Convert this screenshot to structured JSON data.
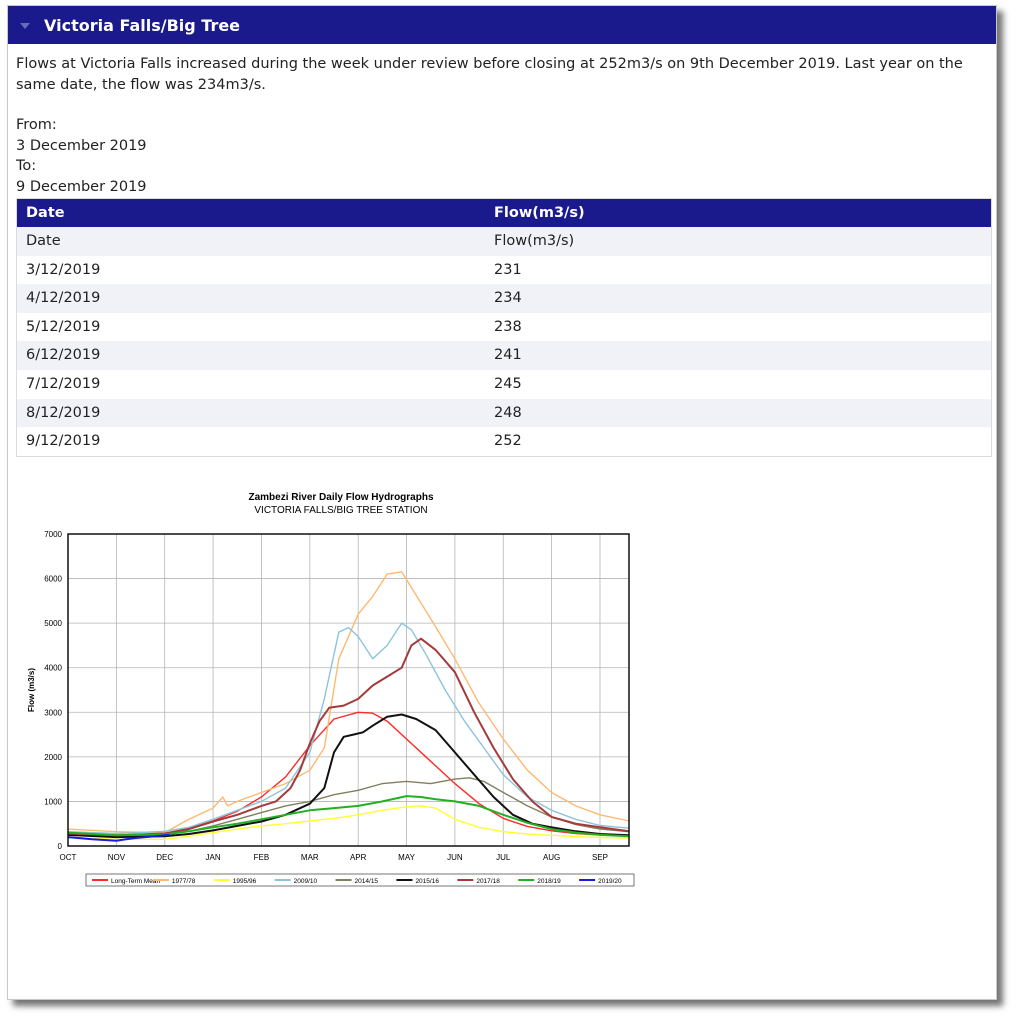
{
  "panel": {
    "title": "Victoria Falls/Big Tree",
    "intro": "Flows at Victoria Falls increased during the week under review before closing at 252m3/s on 9th December 2019. Last year on the same date, the flow was 234m3/s.",
    "from_label": "From:",
    "from_date": "3 December 2019",
    "to_label": "To:",
    "to_date": "9 December 2019"
  },
  "table": {
    "headers": [
      "Date",
      "Flow(m3/s)"
    ],
    "rows": [
      [
        "Date",
        "Flow(m3/s)"
      ],
      [
        "3/12/2019",
        "231"
      ],
      [
        "4/12/2019",
        "234"
      ],
      [
        "5/12/2019",
        "238"
      ],
      [
        "6/12/2019",
        "241"
      ],
      [
        "7/12/2019",
        "245"
      ],
      [
        "8/12/2019",
        "248"
      ],
      [
        "9/12/2019",
        "252"
      ]
    ]
  },
  "chart_data": {
    "type": "line",
    "title": "Zambezi River Daily Flow Hydrographs",
    "subtitle": "VICTORIA FALLS/BIG TREE STATION",
    "xlabel": "",
    "ylabel": "Flow (m3/s)",
    "ylim": [
      0,
      7000
    ],
    "yticks": [
      0,
      1000,
      2000,
      3000,
      4000,
      5000,
      6000,
      7000
    ],
    "xlim": [
      0,
      11.6
    ],
    "categories": [
      "OCT",
      "NOV",
      "DEC",
      "JAN",
      "FEB",
      "MAR",
      "APR",
      "MAY",
      "JUN",
      "JUL",
      "AUG",
      "SEP"
    ],
    "grid": true,
    "legend_position": "bottom",
    "series": [
      {
        "name": "Long-Term Mean",
        "color": "#ff2a2a",
        "x": [
          0,
          1,
          2,
          2.5,
          3,
          3.5,
          4,
          4.5,
          5,
          5.5,
          6,
          6.3,
          6.6,
          7,
          7.5,
          8,
          8.5,
          9,
          9.5,
          10,
          10.5,
          11,
          11.6
        ],
        "y": [
          300,
          240,
          280,
          400,
          560,
          780,
          1100,
          1550,
          2250,
          2850,
          3000,
          2980,
          2800,
          2400,
          1900,
          1400,
          950,
          620,
          440,
          340,
          280,
          250,
          230
        ]
      },
      {
        "name": "1977/78",
        "color": "#ffb870",
        "x": [
          0,
          1,
          2,
          2.5,
          3,
          3.2,
          3.3,
          3.5,
          4,
          4.5,
          5,
          5.3,
          5.6,
          6,
          6.3,
          6.6,
          6.9,
          7.1,
          7.5,
          8,
          8.5,
          9,
          9.5,
          10,
          10.5,
          11,
          11.6
        ],
        "y": [
          380,
          320,
          300,
          600,
          850,
          1100,
          900,
          1000,
          1200,
          1400,
          1700,
          2200,
          4200,
          5200,
          5600,
          6100,
          6150,
          5800,
          5100,
          4200,
          3200,
          2400,
          1700,
          1200,
          900,
          700,
          560
        ]
      },
      {
        "name": "1995/96",
        "color": "#ffff33",
        "x": [
          0,
          1,
          2,
          2.5,
          3,
          3.5,
          4,
          4.5,
          5,
          5.5,
          6,
          6.5,
          7,
          7.3,
          7.6,
          8,
          8.5,
          9,
          9.5,
          10,
          10.5,
          11,
          11.6
        ],
        "y": [
          200,
          150,
          150,
          220,
          300,
          380,
          450,
          500,
          560,
          620,
          700,
          800,
          880,
          900,
          850,
          600,
          420,
          320,
          270,
          240,
          210,
          190,
          180
        ]
      },
      {
        "name": "2009/10",
        "color": "#8cc4dc",
        "x": [
          0,
          1,
          2,
          2.5,
          3,
          3.5,
          4,
          4.5,
          5,
          5.3,
          5.6,
          5.8,
          6,
          6.3,
          6.6,
          6.9,
          7.1,
          7.4,
          7.8,
          8.2,
          8.6,
          9,
          9.5,
          10,
          10.5,
          11,
          11.6
        ],
        "y": [
          320,
          280,
          330,
          420,
          600,
          800,
          1000,
          1300,
          2100,
          3300,
          4800,
          4900,
          4700,
          4200,
          4500,
          5000,
          4850,
          4300,
          3500,
          2800,
          2200,
          1600,
          1100,
          800,
          600,
          460,
          400
        ]
      },
      {
        "name": "2014/15",
        "color": "#808060",
        "x": [
          0,
          1,
          2,
          2.5,
          3,
          3.5,
          4,
          4.5,
          5,
          5.5,
          6,
          6.5,
          7,
          7.5,
          8,
          8.3,
          8.6,
          9,
          9.5,
          10,
          10.5,
          11,
          11.6
        ],
        "y": [
          250,
          220,
          250,
          330,
          450,
          600,
          750,
          900,
          1000,
          1150,
          1250,
          1400,
          1450,
          1400,
          1500,
          1530,
          1450,
          1200,
          900,
          650,
          480,
          380,
          320
        ]
      },
      {
        "name": "2015/16",
        "color": "#111111",
        "x": [
          0,
          1,
          2,
          2.5,
          3,
          3.5,
          4,
          4.5,
          5,
          5.3,
          5.5,
          5.7,
          5.9,
          6.1,
          6.3,
          6.6,
          6.9,
          7.2,
          7.6,
          8,
          8.4,
          8.8,
          9.2,
          9.6,
          10,
          10.5,
          11,
          11.6
        ],
        "y": [
          250,
          200,
          220,
          270,
          350,
          450,
          550,
          700,
          950,
          1300,
          2100,
          2450,
          2500,
          2550,
          2700,
          2900,
          2950,
          2850,
          2600,
          2100,
          1600,
          1100,
          700,
          500,
          420,
          330,
          270,
          240
        ]
      },
      {
        "name": "2017/18",
        "color": "#a53a3a",
        "x": [
          0,
          1,
          2,
          2.5,
          3,
          3.5,
          4,
          4.3,
          4.6,
          4.8,
          5,
          5.2,
          5.4,
          5.7,
          6,
          6.3,
          6.6,
          6.9,
          7.1,
          7.3,
          7.6,
          8,
          8.4,
          8.8,
          9.2,
          9.6,
          10,
          10.5,
          11,
          11.6
        ],
        "y": [
          280,
          240,
          280,
          380,
          550,
          700,
          900,
          1000,
          1300,
          1700,
          2300,
          2800,
          3100,
          3150,
          3300,
          3600,
          3800,
          4000,
          4500,
          4650,
          4400,
          3900,
          3000,
          2200,
          1500,
          1000,
          650,
          500,
          420,
          330
        ]
      },
      {
        "name": "2018/19",
        "color": "#22b022",
        "x": [
          0,
          1,
          2,
          2.5,
          3,
          3.5,
          4,
          4.5,
          5,
          5.5,
          6,
          6.5,
          7,
          7.3,
          7.6,
          8,
          8.5,
          9,
          9.5,
          10,
          10.5,
          11,
          11.6
        ],
        "y": [
          300,
          240,
          260,
          330,
          420,
          500,
          600,
          700,
          800,
          850,
          900,
          1000,
          1120,
          1100,
          1050,
          1000,
          900,
          700,
          520,
          380,
          300,
          250,
          220
        ]
      },
      {
        "name": "2019/20",
        "color": "#1a1ae6",
        "x": [
          0,
          0.5,
          1,
          1.2,
          1.4,
          1.6,
          1.8,
          2.0,
          2.1
        ],
        "y": [
          200,
          150,
          120,
          150,
          180,
          200,
          220,
          240,
          252
        ]
      }
    ]
  }
}
